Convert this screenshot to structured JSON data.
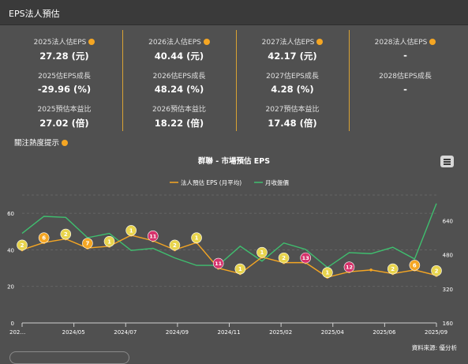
{
  "header": {
    "title": "EPS法人預估"
  },
  "metrics": [
    {
      "eps_label": "2025法人估EPS",
      "eps_value": "27.28 (元)",
      "growth_label": "2025估EPS成長",
      "growth_value": "-29.96 (%)",
      "pe_label": "2025預估本益比",
      "pe_value": "27.02 (倍)"
    },
    {
      "eps_label": "2026法人估EPS",
      "eps_value": "40.44 (元)",
      "growth_label": "2026估EPS成長",
      "growth_value": "48.24 (%)",
      "pe_label": "2026預估本益比",
      "pe_value": "18.22 (倍)"
    },
    {
      "eps_label": "2027法人估EPS",
      "eps_value": "42.17 (元)",
      "growth_label": "2027估EPS成長",
      "growth_value": "4.28 (%)",
      "pe_label": "2027預估本益比",
      "pe_value": "17.48 (倍)"
    },
    {
      "eps_label": "2028法人估EPS",
      "eps_value": "-",
      "growth_label": "2028估EPS成長",
      "growth_value": "-",
      "pe_label": "",
      "pe_value": ""
    }
  ],
  "focus": {
    "label": "關注熱度提示"
  },
  "chart": {
    "title": "群聯 - 市場預估 EPS",
    "menu_icon": "hamburger-menu-icon"
  },
  "source": {
    "label": "資料來源: 優分析"
  },
  "colors": {
    "eps_line": "#f5a623",
    "price_line": "#3fbf6f",
    "marker_yellow": "#e8d44d",
    "marker_orange": "#f5a623",
    "marker_pink": "#d6336c",
    "divider": "#d9a233"
  },
  "chart_data": {
    "type": "line",
    "title": "群聯 - 市場預估 EPS",
    "x_tick_labels": [
      "202…",
      "2024/05",
      "2024/07",
      "2024/09",
      "2024/11",
      "2025/02",
      "2025/04",
      "2025/06",
      "2025/09"
    ],
    "y_left": {
      "ticks": [
        "0",
        "20",
        "40",
        "60"
      ],
      "range": [
        0,
        70
      ]
    },
    "y_right": {
      "ticks": [
        "160",
        "320",
        "480",
        "640"
      ],
      "range": [
        160,
        760
      ]
    },
    "series": [
      {
        "name": "法人預估 EPS (月平均)",
        "axis": "left",
        "color": "#f5a623",
        "values": [
          40,
          44,
          46,
          41,
          42,
          48,
          45,
          40,
          44,
          30,
          27,
          36,
          33,
          33,
          25,
          28,
          29,
          27,
          29,
          26
        ]
      },
      {
        "name": "月收盤價",
        "axis": "right",
        "color": "#3fbf6f",
        "values": [
          580,
          660,
          655,
          560,
          580,
          500,
          510,
          465,
          430,
          430,
          520,
          450,
          535,
          505,
          420,
          490,
          485,
          515,
          460,
          720
        ]
      }
    ],
    "heat_markers": [
      {
        "label": "2",
        "color": "yellow"
      },
      {
        "label": "6",
        "color": "orange"
      },
      {
        "label": "2",
        "color": "yellow"
      },
      {
        "label": "7",
        "color": "orange"
      },
      {
        "label": "1",
        "color": "yellow"
      },
      {
        "label": "1",
        "color": "yellow"
      },
      {
        "label": "11",
        "color": "pink"
      },
      {
        "label": "2",
        "color": "yellow"
      },
      {
        "label": "1",
        "color": "yellow"
      },
      {
        "label": "11",
        "color": "pink"
      },
      {
        "label": "1",
        "color": "yellow"
      },
      {
        "label": "1",
        "color": "yellow"
      },
      {
        "label": "2",
        "color": "yellow"
      },
      {
        "label": "13",
        "color": "pink"
      },
      {
        "label": "1",
        "color": "yellow"
      },
      {
        "label": "12",
        "color": "pink"
      },
      {
        "label": "",
        "color": "none"
      },
      {
        "label": "2",
        "color": "yellow"
      },
      {
        "label": "6",
        "color": "orange"
      },
      {
        "label": "2",
        "color": "yellow"
      }
    ],
    "legend_position": "top",
    "grid": true
  }
}
